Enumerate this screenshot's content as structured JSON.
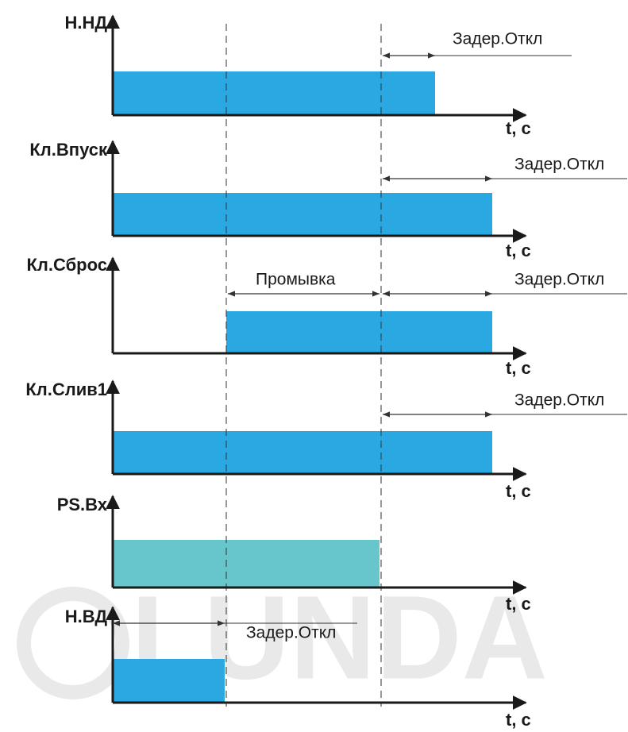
{
  "watermark": "LUNDA",
  "signals": [
    {
      "label": "Н.НД",
      "axis_label": "t, с",
      "annotations": [
        "Задер.Откл"
      ]
    },
    {
      "label": "Кл.Впуск",
      "axis_label": "t, с",
      "annotations": [
        "Задер.Откл"
      ]
    },
    {
      "label": "Кл.Сброс",
      "axis_label": "t, с",
      "annotations": [
        "Промывка",
        "Задер.Откл"
      ]
    },
    {
      "label": "Кл.Слив1",
      "axis_label": "t, с",
      "annotations": [
        "Задер.Откл"
      ]
    },
    {
      "label": "PS.Вх",
      "axis_label": "t, с",
      "annotations": []
    },
    {
      "label": "Н.ВД",
      "axis_label": "t, с",
      "annotations": [
        "Задер.Откл"
      ]
    }
  ]
}
